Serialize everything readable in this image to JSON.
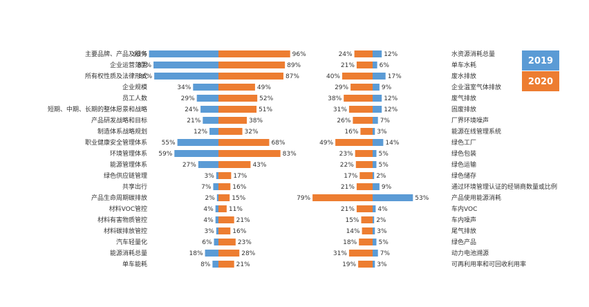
{
  "colors": {
    "y2019": "#5B9BD5",
    "y2020": "#ED7D31",
    "text": "#333333",
    "axis": "#999999"
  },
  "chart_data": [
    {
      "type": "bar",
      "orientation": "horizontal-butterfly",
      "categories": [
        "主要品牌、产品及服务",
        "企业运营范围",
        "所有权性质及法律形式",
        "企业规模",
        "员工人数",
        "短期、中期、长期的整体愿景和战略",
        "产品研发战略和目标",
        "制造体系战略规划",
        "职业健康安全管理体系",
        "环境管理体系",
        "能源管理体系",
        "绿色供应链管理",
        "共享出行",
        "产品生命周期碳排放",
        "材料VOC管控",
        "材料有害物质管控",
        "材料碳排放管控",
        "汽车轻量化",
        "能源消耗总量",
        "单车能耗"
      ],
      "series": [
        {
          "name": "2019",
          "values": [
            93,
            87,
            86,
            34,
            29,
            24,
            21,
            12,
            55,
            59,
            27,
            3,
            7,
            2,
            4,
            4,
            3,
            6,
            18,
            8
          ],
          "labels": [
            "93%",
            "87%",
            "86%",
            "34%",
            "29%",
            "24%",
            "21%",
            "12%",
            "55%",
            "59%",
            "27%",
            "3%",
            "7%",
            "2%",
            "4%",
            "4%",
            "3%",
            "6%",
            "18%",
            "8%"
          ]
        },
        {
          "name": "2020",
          "values": [
            96,
            89,
            87,
            49,
            52,
            51,
            38,
            32,
            68,
            83,
            43,
            17,
            16,
            15,
            11,
            21,
            16,
            23,
            28,
            21
          ],
          "labels": [
            "96%",
            "89%",
            "87%",
            "49%",
            "52%",
            "51%",
            "38%",
            "32%",
            "68%",
            "83%",
            "43%",
            "17%",
            "16%",
            "15%",
            "11%",
            "21%",
            "16%",
            "23%",
            "28%",
            "21%"
          ]
        }
      ]
    },
    {
      "type": "bar",
      "orientation": "horizontal-butterfly",
      "categories": [
        "水资源消耗总量",
        "单车水耗",
        "废水排放",
        "企业温室气体排放",
        "废气排放",
        "固废排放",
        "厂界环境噪声",
        "能源在线管理系统",
        "绿色工厂",
        "绿色包装",
        "绿色运输",
        "绿色储存",
        "通过环境管理认证的经销商数量或比例",
        "产品使用能源消耗",
        "车内VOC",
        "车内噪声",
        "尾气排放",
        "绿色产品",
        "动力电池溯源",
        "可再利用率和可回收利用率"
      ],
      "series": [
        {
          "name": "2020",
          "values": [
            24,
            21,
            40,
            29,
            38,
            31,
            26,
            16,
            49,
            23,
            22,
            17,
            21,
            79,
            21,
            15,
            14,
            18,
            31,
            19
          ],
          "labels": [
            "24%",
            "21%",
            "40%",
            "29%",
            "38%",
            "31%",
            "26%",
            "16%",
            "49%",
            "23%",
            "22%",
            "17%",
            "21%",
            "79%",
            "21%",
            "15%",
            "14%",
            "18%",
            "31%",
            "19%"
          ]
        },
        {
          "name": "2019",
          "values": [
            12,
            6,
            17,
            9,
            12,
            12,
            7,
            3,
            14,
            5,
            5,
            2,
            9,
            53,
            4,
            2,
            3,
            5,
            7,
            3
          ],
          "labels": [
            "12%",
            "6%",
            "17%",
            "9%",
            "12%",
            "12%",
            "7%",
            "3%",
            "14%",
            "5%",
            "5%",
            "2%",
            "9%",
            "53%",
            "4%",
            "2%",
            "3%",
            "5%",
            "7%",
            "3%"
          ]
        }
      ]
    }
  ],
  "legend": {
    "items": [
      "2019",
      "2020"
    ]
  }
}
